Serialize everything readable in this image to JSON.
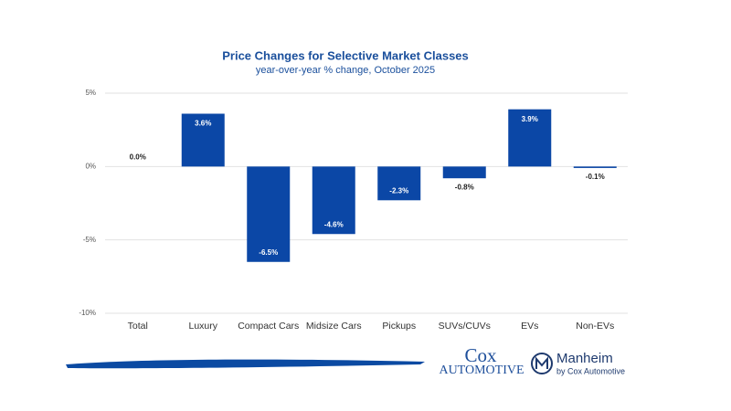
{
  "chart_data": {
    "type": "bar",
    "title": "Price Changes for Selective Market Classes",
    "subtitle": "year-over-year % change, October 2025",
    "categories": [
      "Total",
      "Luxury",
      "Compact Cars",
      "Midsize Cars",
      "Pickups",
      "SUVs/CUVs",
      "EVs",
      "Non-EVs"
    ],
    "values": [
      0.0,
      3.6,
      -6.5,
      -4.6,
      -2.3,
      -0.8,
      3.9,
      -0.1
    ],
    "value_labels": [
      "0.0%",
      "3.6%",
      "-6.5%",
      "-4.6%",
      "-2.3%",
      "-0.8%",
      "3.9%",
      "-0.1%"
    ],
    "color": "#0b47a6",
    "ylim": [
      -10,
      5
    ],
    "yticks": [
      {
        "value": 5,
        "label": "5%"
      },
      {
        "value": 0,
        "label": "0%"
      },
      {
        "value": -5,
        "label": "-5%"
      },
      {
        "value": -10,
        "label": "-10%"
      }
    ],
    "grid": true
  },
  "footer": {
    "brand": "Cox",
    "brand_sub": "Automotive",
    "partner": "Manheim",
    "partner_sub": "by Cox Automotive"
  }
}
